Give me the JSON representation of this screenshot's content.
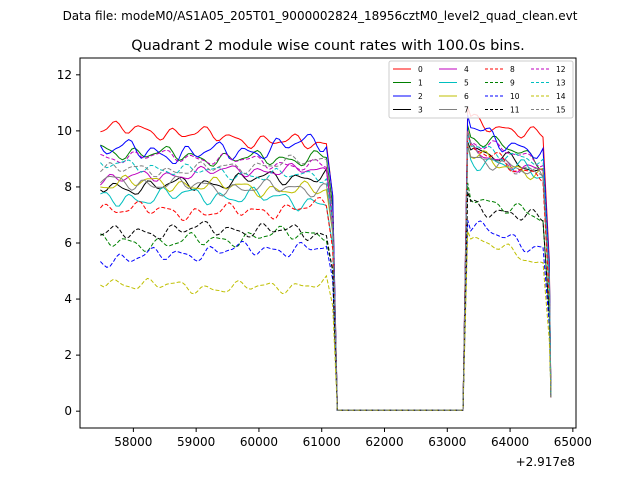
{
  "figure": {
    "suptitle": "Data file: modeM0/AS1A05_205T01_9000002824_18956cztM0_level2_quad_clean.evt",
    "title": "Quadrant 2 module wise count rates with 100.0s bins.",
    "x_offset_label": "+2.917e8"
  },
  "chart_data": {
    "type": "line",
    "title": "Quadrant 2 module wise count rates with 100.0s bins.",
    "xlabel": "",
    "ylabel": "",
    "x_offset": 291700000,
    "xlim": [
      57150,
      65050
    ],
    "ylim": [
      -0.6,
      12.6
    ],
    "xticks": [
      58000,
      59000,
      60000,
      61000,
      62000,
      63000,
      64000,
      65000
    ],
    "yticks": [
      0,
      2,
      4,
      6,
      8,
      10,
      12
    ],
    "grid": false,
    "legend_position": "top-right",
    "legend_columns": 4,
    "segments": [
      {
        "start": 57475,
        "end": 61075
      },
      {
        "start": 63325,
        "end": 64525
      }
    ],
    "edges": [
      61175,
      61250,
      63250,
      63325,
      64625,
      64650
    ],
    "series": [
      {
        "name": "0",
        "color": "#ff0000",
        "dash": "solid",
        "plateau": 9.8,
        "amp": 0.3,
        "wave": 0.25,
        "second": 10.3
      },
      {
        "name": "1",
        "color": "#008000",
        "dash": "solid",
        "plateau": 9.2,
        "amp": 0.3,
        "wave": 0.2,
        "second": 9.6
      },
      {
        "name": "2",
        "color": "#0000ff",
        "dash": "solid",
        "plateau": 9.5,
        "amp": 0.4,
        "wave": 0.3,
        "second": 10.0
      },
      {
        "name": "3",
        "color": "#000000",
        "dash": "solid",
        "plateau": 8.2,
        "amp": 0.3,
        "wave": 0.2,
        "second": 9.5
      },
      {
        "name": "4",
        "color": "#bf00bf",
        "dash": "solid",
        "plateau": 8.4,
        "amp": 0.25,
        "wave": 0.2,
        "second": 9.5
      },
      {
        "name": "5",
        "color": "#00bfbf",
        "dash": "solid",
        "plateau": 7.5,
        "amp": 0.35,
        "wave": 0.2,
        "second": 9.2
      },
      {
        "name": "6",
        "color": "#bfbf00",
        "dash": "solid",
        "plateau": 8.0,
        "amp": 0.3,
        "wave": 0.15,
        "second": 9.1
      },
      {
        "name": "7",
        "color": "#808080",
        "dash": "solid",
        "plateau": 8.1,
        "amp": 0.3,
        "wave": 0.15,
        "second": 9.0
      },
      {
        "name": "8",
        "color": "#ff0000",
        "dash": "dashed",
        "plateau": 7.3,
        "amp": 0.3,
        "wave": 0.2,
        "second": 9.2
      },
      {
        "name": "9",
        "color": "#008000",
        "dash": "dashed",
        "plateau": 6.2,
        "amp": 0.3,
        "wave": 0.2,
        "second": 7.8
      },
      {
        "name": "10",
        "color": "#0000ff",
        "dash": "dashed",
        "plateau": 5.6,
        "amp": 0.3,
        "wave": 0.2,
        "second": 6.8
      },
      {
        "name": "11",
        "color": "#000000",
        "dash": "dashed",
        "plateau": 6.3,
        "amp": 0.3,
        "wave": 0.2,
        "second": 7.6
      },
      {
        "name": "12",
        "color": "#bf00bf",
        "dash": "dashed",
        "plateau": 8.9,
        "amp": 0.25,
        "wave": 0.2,
        "second": 9.6
      },
      {
        "name": "13",
        "color": "#00bfbf",
        "dash": "dashed",
        "plateau": 8.6,
        "amp": 0.25,
        "wave": 0.2,
        "second": 9.4
      },
      {
        "name": "14",
        "color": "#bfbf00",
        "dash": "dashed",
        "plateau": 4.6,
        "amp": 0.25,
        "wave": 0.2,
        "second": 6.0
      },
      {
        "name": "15",
        "color": "#808080",
        "dash": "dashed",
        "plateau": 8.8,
        "amp": 0.25,
        "wave": 0.2,
        "second": 9.3
      }
    ]
  }
}
